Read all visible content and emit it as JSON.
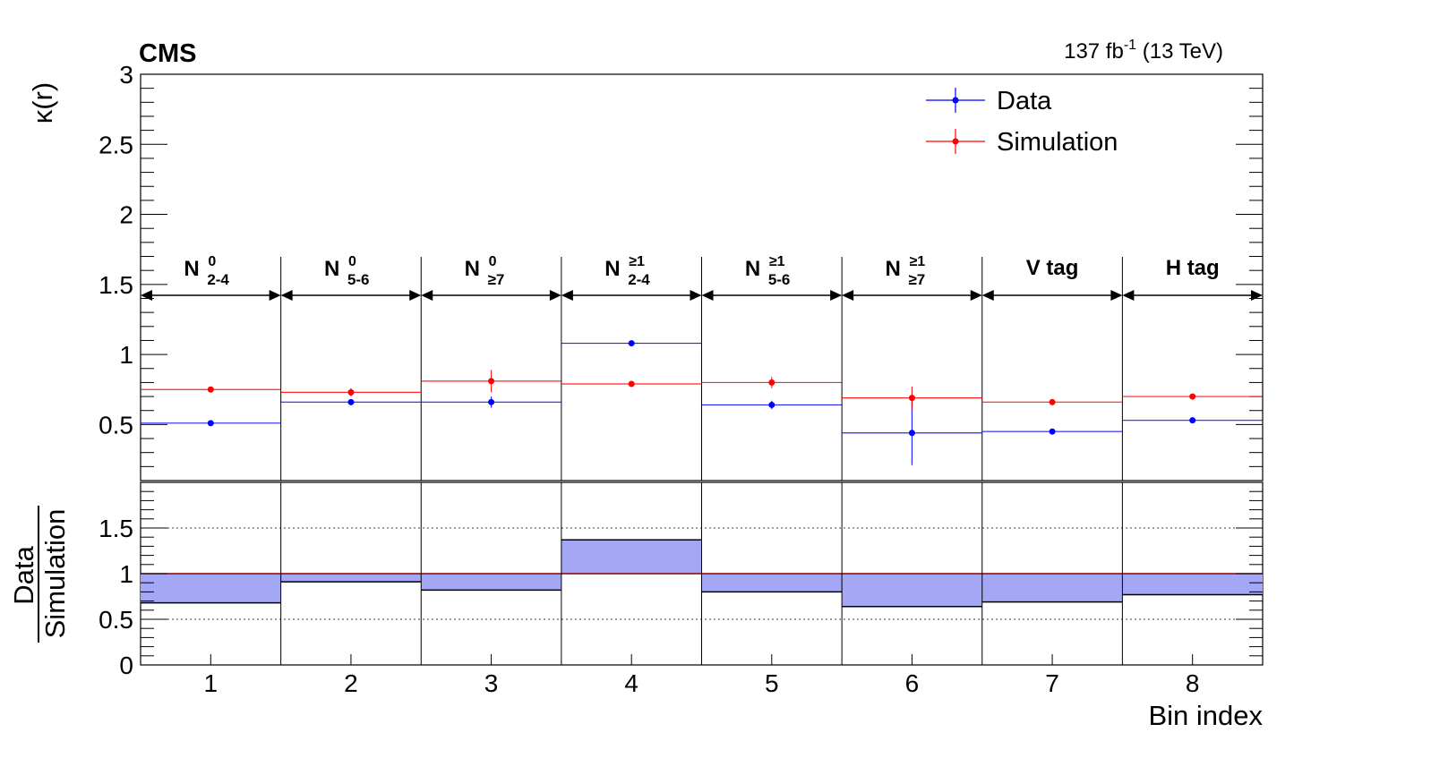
{
  "header": {
    "experiment": "CMS",
    "lumi_main": "137 fb",
    "lumi_sup": "-1",
    "lumi_energy": " (13 TeV)"
  },
  "chart_data": [
    {
      "type": "scatter",
      "panel": "upper",
      "ylabel": "κ(r)",
      "ylim": [
        0.1,
        3.0
      ],
      "yticks": [
        "0.5",
        "1",
        "1.5",
        "2",
        "2.5",
        "3"
      ],
      "grid": false,
      "legend_position": "top-right",
      "x_bins": [
        1,
        2,
        3,
        4,
        5,
        6,
        7,
        8
      ],
      "series": [
        {
          "name": "Data",
          "color": "#0000ff",
          "values": [
            0.51,
            0.66,
            0.66,
            1.08,
            0.64,
            0.44,
            0.45,
            0.53
          ],
          "errors": [
            0.01,
            0.01,
            0.04,
            0.005,
            0.03,
            0.23,
            0.01,
            0.01
          ]
        },
        {
          "name": "Simulation",
          "color": "#ff0000",
          "values": [
            0.75,
            0.73,
            0.81,
            0.79,
            0.8,
            0.69,
            0.66,
            0.7
          ],
          "errors": [
            0.01,
            0.03,
            0.08,
            0.01,
            0.04,
            0.08,
            0.01,
            0.01
          ]
        }
      ],
      "categories": [
        {
          "main": "N",
          "sup": "0",
          "sub": "2-4"
        },
        {
          "main": "N",
          "sup": "0",
          "sub": "5-6"
        },
        {
          "main": "N",
          "sup": "0",
          "sub": "≥7"
        },
        {
          "main": "N",
          "sup": "≥1",
          "sub": "2-4"
        },
        {
          "main": "N",
          "sup": "≥1",
          "sub": "5-6"
        },
        {
          "main": "N",
          "sup": "≥1",
          "sub": "≥7"
        },
        {
          "main": "V tag",
          "sup": "",
          "sub": ""
        },
        {
          "main": "H tag",
          "sup": "",
          "sub": ""
        }
      ]
    },
    {
      "type": "bar",
      "panel": "lower",
      "ylabel_numerator": "Data",
      "ylabel_denominator": "Simulation",
      "xlabel": "Bin index",
      "ylim": [
        0,
        2.0
      ],
      "yticks": [
        "0",
        "0.5",
        "1",
        "1.5"
      ],
      "grid_lines_at": [
        0.5,
        1.5
      ],
      "reference_line": 1.0,
      "reference_color": "#8b0000",
      "fill_color": "#a3a7f5",
      "categories": [
        "1",
        "2",
        "3",
        "4",
        "5",
        "6",
        "7",
        "8"
      ],
      "values": [
        0.68,
        0.91,
        0.82,
        1.37,
        0.8,
        0.64,
        0.69,
        0.77
      ]
    }
  ]
}
